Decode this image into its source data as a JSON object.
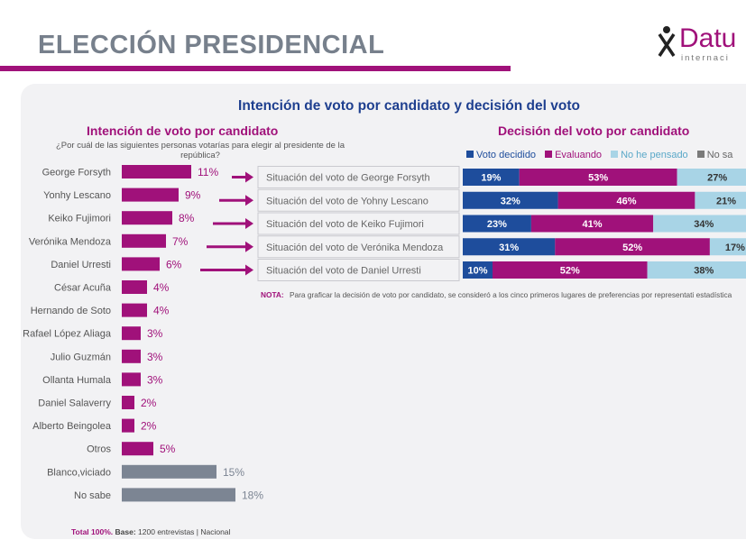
{
  "header": {
    "title": "ELECCIÓN PRESIDENCIAL"
  },
  "logo": {
    "name": "Datu",
    "sub": "internaci"
  },
  "main_title": "Intención de voto por candidato y decisión del voto",
  "left_title": "Intención de voto por candidato",
  "question": "¿Por cuál de las siguientes personas votarías para elegir al presidente de la república?",
  "right_title": "Decisión del voto por candidato",
  "colors": {
    "magenta": "#a0117a",
    "gray_bar": "#7c8593",
    "voto_decidido": "#1e4d9c",
    "evaluando": "#a0117a",
    "no_he_pensado": "#a8d4e6",
    "no_sabe": "#7a7a7a"
  },
  "chart_data": [
    {
      "type": "bar",
      "orientation": "horizontal",
      "title": "Intención de voto por candidato",
      "categories": [
        "George Forsyth",
        "Yonhy Lescano",
        "Keiko Fujimori",
        "Verónika Mendoza",
        "Daniel Urresti",
        "César Acuña",
        "Hernando de Soto",
        "Rafael López Aliaga",
        "Julio Guzmán",
        "Ollanta Humala",
        "Daniel Salaverry",
        "Alberto Beingolea",
        "Otros",
        "Blanco,viciado",
        "No sabe"
      ],
      "values": [
        11,
        9,
        8,
        7,
        6,
        4,
        4,
        3,
        3,
        3,
        2,
        2,
        5,
        15,
        18
      ],
      "labels": [
        "11%",
        "9%",
        "8%",
        "7%",
        "6%",
        "4%",
        "4%",
        "3%",
        "3%",
        "3%",
        "2%",
        "2%",
        "5%",
        "15%",
        "18%"
      ],
      "bar_colors": [
        "magenta",
        "magenta",
        "magenta",
        "magenta",
        "magenta",
        "magenta",
        "magenta",
        "magenta",
        "magenta",
        "magenta",
        "magenta",
        "magenta",
        "magenta",
        "gray_bar",
        "gray_bar"
      ],
      "unit": "%"
    },
    {
      "type": "bar",
      "orientation": "horizontal",
      "stacked": true,
      "title": "Decisión del voto por candidato",
      "categories": [
        "Situación del voto de George Forsyth",
        "Situación del voto de Yohny Lescano",
        "Situación del voto de Keiko Fujimori",
        "Situación del voto de Verónika Mendoza",
        "Situación del voto de Daniel Urresti"
      ],
      "series": [
        {
          "name": "Voto decidido",
          "color": "voto_decidido",
          "values": [
            19,
            32,
            23,
            31,
            10
          ],
          "labels": [
            "19%",
            "32%",
            "23%",
            "31%",
            "10%"
          ]
        },
        {
          "name": "Evaluando",
          "color": "evaluando",
          "values": [
            53,
            46,
            41,
            52,
            52
          ],
          "labels": [
            "53%",
            "46%",
            "41%",
            "52%",
            "52%"
          ]
        },
        {
          "name": "No he pensado",
          "color": "no_he_pensado",
          "values": [
            27,
            21,
            34,
            17,
            38
          ],
          "labels": [
            "27%",
            "21%",
            "34%",
            "17%",
            "38%"
          ]
        },
        {
          "name": "No sa",
          "color": "no_sabe",
          "values": [
            1,
            1,
            2,
            0,
            0
          ],
          "labels": [
            "",
            "",
            "",
            "",
            ""
          ]
        }
      ],
      "legend": "top"
    }
  ],
  "note": {
    "label": "NOTA:",
    "text": "Para graficar la decisión de voto por candidato, se consideró a los cinco primeros lugares de preferencias por representati estadística"
  },
  "footer": {
    "total": "Total 100%.",
    "base_label": "Base:",
    "base_text": "1200 entrevistas | Nacional"
  }
}
